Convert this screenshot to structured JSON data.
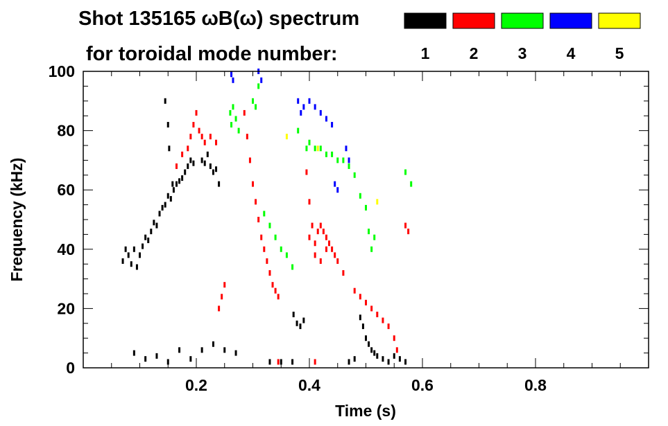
{
  "chart_data": {
    "type": "heatmap",
    "title": "Shot 135165 ωB(ω) spectrum",
    "legend_title": "for toroidal mode number:",
    "legend_position": "top-right",
    "xlabel": "Time (s)",
    "ylabel": "Frequency (kHz)",
    "xlim": [
      0.0,
      1.0
    ],
    "ylim": [
      0,
      100
    ],
    "grid": false,
    "x_ticks": [
      {
        "value": 0.2,
        "label": "0.2"
      },
      {
        "value": 0.4,
        "label": "0.4"
      },
      {
        "value": 0.6,
        "label": "0.6"
      },
      {
        "value": 0.8,
        "label": "0.8"
      }
    ],
    "y_ticks": [
      {
        "value": 0,
        "label": "0"
      },
      {
        "value": 20,
        "label": "20"
      },
      {
        "value": 40,
        "label": "40"
      },
      {
        "value": 60,
        "label": "60"
      },
      {
        "value": 80,
        "label": "80"
      },
      {
        "value": 100,
        "label": "100"
      }
    ],
    "series": [
      {
        "name": "1",
        "color": "#000000",
        "points": [
          [
            0.07,
            36
          ],
          [
            0.075,
            40
          ],
          [
            0.08,
            38
          ],
          [
            0.085,
            35
          ],
          [
            0.09,
            40
          ],
          [
            0.095,
            34
          ],
          [
            0.1,
            38
          ],
          [
            0.105,
            41
          ],
          [
            0.11,
            44
          ],
          [
            0.115,
            43
          ],
          [
            0.12,
            46
          ],
          [
            0.125,
            49
          ],
          [
            0.13,
            48
          ],
          [
            0.135,
            52
          ],
          [
            0.14,
            54
          ],
          [
            0.145,
            55
          ],
          [
            0.15,
            58
          ],
          [
            0.155,
            57
          ],
          [
            0.16,
            60
          ],
          [
            0.165,
            62
          ],
          [
            0.17,
            63
          ],
          [
            0.175,
            64
          ],
          [
            0.18,
            66
          ],
          [
            0.185,
            68
          ],
          [
            0.19,
            70
          ],
          [
            0.195,
            69
          ],
          [
            0.21,
            70
          ],
          [
            0.215,
            69
          ],
          [
            0.22,
            72
          ],
          [
            0.225,
            68
          ],
          [
            0.23,
            66
          ],
          [
            0.235,
            67
          ],
          [
            0.24,
            62
          ],
          [
            0.372,
            18
          ],
          [
            0.378,
            15
          ],
          [
            0.384,
            14
          ],
          [
            0.39,
            16
          ],
          [
            0.49,
            17
          ],
          [
            0.495,
            14
          ],
          [
            0.5,
            10
          ],
          [
            0.505,
            8
          ],
          [
            0.51,
            6
          ],
          [
            0.515,
            5
          ],
          [
            0.52,
            4
          ],
          [
            0.53,
            3
          ],
          [
            0.54,
            2
          ],
          [
            0.55,
            4
          ],
          [
            0.09,
            5
          ],
          [
            0.11,
            3
          ],
          [
            0.13,
            4
          ],
          [
            0.15,
            2
          ],
          [
            0.17,
            6
          ],
          [
            0.19,
            3
          ],
          [
            0.21,
            6
          ],
          [
            0.23,
            8
          ],
          [
            0.25,
            6
          ],
          [
            0.27,
            5
          ],
          [
            0.33,
            2
          ],
          [
            0.35,
            2
          ],
          [
            0.37,
            2
          ],
          [
            0.47,
            2
          ],
          [
            0.48,
            3
          ],
          [
            0.56,
            3
          ],
          [
            0.57,
            2
          ],
          [
            0.145,
            90
          ],
          [
            0.15,
            82
          ],
          [
            0.152,
            74
          ],
          [
            0.158,
            62
          ]
        ]
      },
      {
        "name": "2",
        "color": "#ff0000",
        "points": [
          [
            0.185,
            74
          ],
          [
            0.19,
            78
          ],
          [
            0.195,
            82
          ],
          [
            0.2,
            86
          ],
          [
            0.205,
            80
          ],
          [
            0.21,
            78
          ],
          [
            0.215,
            76
          ],
          [
            0.225,
            78
          ],
          [
            0.235,
            76
          ],
          [
            0.175,
            72
          ],
          [
            0.165,
            68
          ],
          [
            0.285,
            86
          ],
          [
            0.29,
            78
          ],
          [
            0.295,
            70
          ],
          [
            0.3,
            62
          ],
          [
            0.305,
            56
          ],
          [
            0.31,
            50
          ],
          [
            0.315,
            44
          ],
          [
            0.32,
            40
          ],
          [
            0.325,
            36
          ],
          [
            0.33,
            32
          ],
          [
            0.335,
            28
          ],
          [
            0.34,
            26
          ],
          [
            0.345,
            24
          ],
          [
            0.24,
            20
          ],
          [
            0.245,
            24
          ],
          [
            0.25,
            28
          ],
          [
            0.395,
            66
          ],
          [
            0.4,
            56
          ],
          [
            0.405,
            48
          ],
          [
            0.41,
            42
          ],
          [
            0.4,
            44
          ],
          [
            0.415,
            46
          ],
          [
            0.42,
            48
          ],
          [
            0.425,
            46
          ],
          [
            0.43,
            44
          ],
          [
            0.435,
            42
          ],
          [
            0.44,
            40
          ],
          [
            0.445,
            38
          ],
          [
            0.45,
            36
          ],
          [
            0.46,
            32
          ],
          [
            0.41,
            38
          ],
          [
            0.42,
            36
          ],
          [
            0.43,
            40
          ],
          [
            0.48,
            26
          ],
          [
            0.49,
            24
          ],
          [
            0.5,
            22
          ],
          [
            0.51,
            20
          ],
          [
            0.52,
            18
          ],
          [
            0.53,
            16
          ],
          [
            0.54,
            14
          ],
          [
            0.55,
            10
          ],
          [
            0.555,
            6
          ],
          [
            0.57,
            48
          ],
          [
            0.575,
            46
          ],
          [
            0.345,
            2
          ],
          [
            0.41,
            2
          ]
        ]
      },
      {
        "name": "3",
        "color": "#00ff00",
        "points": [
          [
            0.26,
            86
          ],
          [
            0.262,
            82
          ],
          [
            0.265,
            88
          ],
          [
            0.27,
            84
          ],
          [
            0.275,
            80
          ],
          [
            0.3,
            90
          ],
          [
            0.305,
            88
          ],
          [
            0.31,
            95
          ],
          [
            0.32,
            52
          ],
          [
            0.33,
            48
          ],
          [
            0.34,
            44
          ],
          [
            0.35,
            40
          ],
          [
            0.36,
            38
          ],
          [
            0.37,
            34
          ],
          [
            0.38,
            80
          ],
          [
            0.395,
            74
          ],
          [
            0.4,
            76
          ],
          [
            0.41,
            74
          ],
          [
            0.42,
            74
          ],
          [
            0.43,
            72
          ],
          [
            0.44,
            72
          ],
          [
            0.45,
            70
          ],
          [
            0.46,
            70
          ],
          [
            0.47,
            68
          ],
          [
            0.48,
            65
          ],
          [
            0.49,
            58
          ],
          [
            0.5,
            54
          ],
          [
            0.505,
            46
          ],
          [
            0.51,
            40
          ],
          [
            0.515,
            44
          ],
          [
            0.57,
            66
          ],
          [
            0.58,
            62
          ]
        ]
      },
      {
        "name": "4",
        "color": "#0000ff",
        "points": [
          [
            0.262,
            99
          ],
          [
            0.265,
            97
          ],
          [
            0.31,
            100
          ],
          [
            0.315,
            97
          ],
          [
            0.38,
            90
          ],
          [
            0.385,
            86
          ],
          [
            0.39,
            88
          ],
          [
            0.4,
            90
          ],
          [
            0.41,
            88
          ],
          [
            0.42,
            86
          ],
          [
            0.43,
            84
          ],
          [
            0.44,
            82
          ],
          [
            0.445,
            62
          ],
          [
            0.45,
            60
          ],
          [
            0.465,
            74
          ],
          [
            0.47,
            70
          ]
        ]
      },
      {
        "name": "5",
        "color": "#ffff00",
        "points": [
          [
            0.36,
            78
          ],
          [
            0.415,
            74
          ],
          [
            0.52,
            56
          ]
        ]
      }
    ]
  }
}
